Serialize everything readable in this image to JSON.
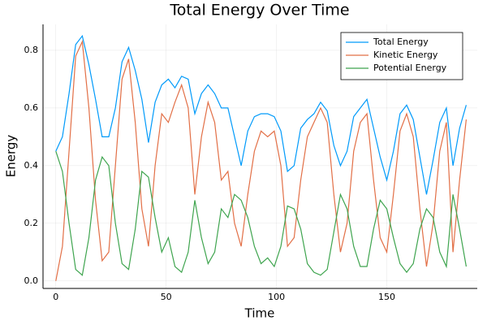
{
  "chart_data": {
    "type": "line",
    "title": "Total Energy Over Time",
    "x_label": "Time",
    "y_label": "Energy",
    "x": [
      0,
      3,
      6,
      9,
      12,
      15,
      18,
      21,
      24,
      27,
      30,
      33,
      36,
      39,
      42,
      45,
      48,
      51,
      54,
      57,
      60,
      63,
      66,
      69,
      72,
      75,
      78,
      81,
      84,
      87,
      90,
      93,
      96,
      99,
      102,
      105,
      108,
      111,
      114,
      117,
      120,
      123,
      126,
      129,
      132,
      135,
      138,
      141,
      144,
      147,
      150,
      153,
      156,
      159,
      162,
      165,
      168,
      171,
      174,
      177,
      180,
      183,
      186
    ],
    "series": [
      {
        "name": "Total Energy",
        "color": "#009afa",
        "values": [
          0.45,
          0.5,
          0.65,
          0.82,
          0.85,
          0.75,
          0.63,
          0.5,
          0.5,
          0.6,
          0.76,
          0.81,
          0.73,
          0.63,
          0.48,
          0.62,
          0.68,
          0.7,
          0.67,
          0.71,
          0.7,
          0.58,
          0.65,
          0.68,
          0.65,
          0.6,
          0.6,
          0.5,
          0.4,
          0.52,
          0.57,
          0.58,
          0.58,
          0.57,
          0.52,
          0.38,
          0.4,
          0.53,
          0.56,
          0.58,
          0.62,
          0.59,
          0.47,
          0.4,
          0.45,
          0.57,
          0.6,
          0.63,
          0.53,
          0.43,
          0.35,
          0.45,
          0.58,
          0.61,
          0.56,
          0.43,
          0.3,
          0.42,
          0.55,
          0.6,
          0.4,
          0.53,
          0.61
        ]
      },
      {
        "name": "Kinetic Energy",
        "color": "#e26f46",
        "values": [
          0.0,
          0.12,
          0.45,
          0.78,
          0.83,
          0.6,
          0.28,
          0.07,
          0.1,
          0.4,
          0.7,
          0.77,
          0.55,
          0.25,
          0.12,
          0.4,
          0.58,
          0.55,
          0.62,
          0.68,
          0.6,
          0.3,
          0.5,
          0.62,
          0.55,
          0.35,
          0.38,
          0.2,
          0.12,
          0.3,
          0.45,
          0.52,
          0.5,
          0.52,
          0.4,
          0.12,
          0.15,
          0.35,
          0.5,
          0.55,
          0.6,
          0.55,
          0.3,
          0.1,
          0.2,
          0.45,
          0.55,
          0.58,
          0.35,
          0.15,
          0.1,
          0.3,
          0.52,
          0.58,
          0.5,
          0.25,
          0.05,
          0.2,
          0.45,
          0.55,
          0.1,
          0.35,
          0.56
        ]
      },
      {
        "name": "Potential Energy",
        "color": "#3ea44e",
        "values": [
          0.45,
          0.38,
          0.2,
          0.04,
          0.02,
          0.15,
          0.35,
          0.43,
          0.4,
          0.2,
          0.06,
          0.04,
          0.18,
          0.38,
          0.36,
          0.22,
          0.1,
          0.15,
          0.05,
          0.03,
          0.1,
          0.28,
          0.15,
          0.06,
          0.1,
          0.25,
          0.22,
          0.3,
          0.28,
          0.22,
          0.12,
          0.06,
          0.08,
          0.05,
          0.12,
          0.26,
          0.25,
          0.18,
          0.06,
          0.03,
          0.02,
          0.04,
          0.17,
          0.3,
          0.25,
          0.12,
          0.05,
          0.05,
          0.18,
          0.28,
          0.25,
          0.15,
          0.06,
          0.03,
          0.06,
          0.18,
          0.25,
          0.22,
          0.1,
          0.05,
          0.3,
          0.18,
          0.05
        ]
      }
    ],
    "xlim": [
      -5.8,
      191
    ],
    "ylim": [
      -0.026,
      0.89
    ],
    "xticks": [
      0,
      50,
      100,
      150
    ],
    "yticks": [
      {
        "value": 0,
        "label": "0.0"
      },
      0.2,
      0.4,
      0.6,
      0.8
    ],
    "grid": true,
    "legend": "top-right"
  }
}
